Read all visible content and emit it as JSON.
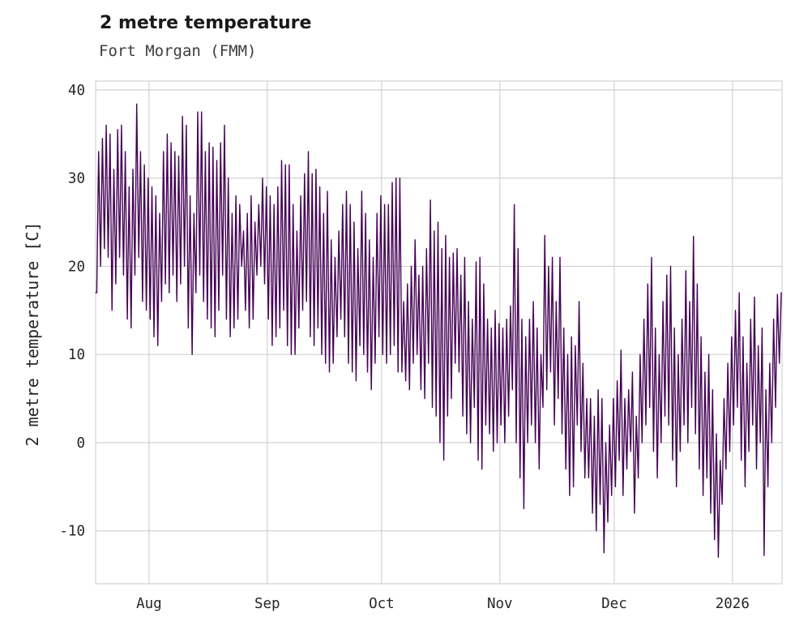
{
  "header": {
    "title": "2 metre temperature",
    "subtitle": "Fort Morgan (FMM)"
  },
  "chart_data": {
    "type": "line",
    "title": "2 metre temperature",
    "subtitle": "Fort Morgan (FMM)",
    "xlabel": "",
    "ylabel": "2 metre temperature [C]",
    "ylim": [
      -16,
      41
    ],
    "grid": true,
    "legend": false,
    "line_color": "#440154",
    "grid_color": "#d2d2d2",
    "x_ticks": [
      {
        "label": "Aug",
        "day": 14
      },
      {
        "label": "Sep",
        "day": 45
      },
      {
        "label": "Oct",
        "day": 75
      },
      {
        "label": "Nov",
        "day": 106
      },
      {
        "label": "Dec",
        "day": 136
      },
      {
        "label": "2026",
        "day": 167
      }
    ],
    "y_ticks": [
      -10,
      0,
      10,
      20,
      30,
      40
    ],
    "days_before_first_tick": 14,
    "series": [
      {
        "name": "2 metre temperature (hourly trace, daily high/low envelope read from plot)",
        "daily_high": [
          33,
          34.5,
          36,
          35,
          31,
          35.5,
          36,
          33,
          29,
          31,
          38.4,
          33,
          31.5,
          30,
          29,
          28,
          26,
          33,
          35,
          34,
          33,
          32.5,
          37,
          36,
          28,
          26,
          37.5,
          37.5,
          33,
          34,
          33.5,
          32,
          34,
          36,
          30,
          26,
          28,
          27,
          24,
          26,
          28,
          25,
          27,
          30,
          29,
          28,
          27,
          29,
          32,
          31.5,
          31.5,
          27,
          24,
          28,
          30.5,
          33,
          30.5,
          31,
          29,
          26,
          28.5,
          23,
          21,
          24,
          27,
          28.5,
          27,
          25,
          22,
          28.5,
          26,
          23,
          21,
          26,
          28,
          27,
          27,
          29.5,
          30,
          30,
          16,
          18,
          20,
          23,
          19,
          20,
          22,
          27.5,
          24,
          25,
          22,
          23.5,
          21,
          21.5,
          22,
          19,
          21,
          16,
          14,
          20.5,
          21,
          18,
          14,
          13,
          15,
          13.5,
          13,
          14,
          15.5,
          27,
          22,
          14,
          12,
          14,
          16,
          13,
          10,
          23.5,
          20,
          21,
          16,
          21,
          13,
          10,
          12,
          11,
          16,
          9,
          5,
          5,
          3,
          6,
          5,
          0,
          2,
          5,
          7,
          10.5,
          5,
          6,
          8,
          3,
          10,
          14,
          18,
          21,
          13,
          10,
          16,
          19,
          20,
          13,
          10,
          14,
          19.5,
          16,
          23.4,
          18,
          12,
          8,
          10,
          6,
          1,
          -2,
          5,
          9,
          12,
          15,
          17,
          12,
          9,
          14,
          16.5,
          11,
          13,
          6,
          9,
          14,
          16.8,
          17
        ],
        "daily_low": [
          17,
          20,
          22,
          21,
          15,
          18,
          21,
          19,
          14,
          13,
          19,
          21,
          16,
          15,
          14,
          12,
          11,
          16,
          18,
          17,
          19,
          16,
          18,
          20,
          13,
          10,
          17,
          19,
          16,
          14,
          13,
          12,
          15,
          19,
          14,
          12,
          13,
          14,
          20,
          15,
          13,
          14,
          19,
          20,
          18,
          14,
          11,
          12,
          13,
          15,
          11,
          10,
          10,
          13,
          15,
          16,
          12,
          11,
          13,
          10,
          9,
          8,
          9,
          12,
          14,
          12,
          9,
          8,
          7,
          11,
          10,
          8,
          6,
          9,
          12,
          10,
          9,
          10,
          11,
          8,
          8,
          7,
          6,
          9,
          10,
          6,
          5,
          9,
          4,
          3,
          0,
          -2,
          3,
          5,
          9,
          8,
          3,
          1,
          0,
          4,
          -2,
          -3,
          2,
          1,
          -1,
          0,
          2,
          0,
          3,
          6,
          0,
          -4,
          -7.5,
          0,
          2,
          0,
          -3,
          4,
          6,
          8,
          2,
          5,
          1,
          -3,
          -6,
          -5,
          2,
          -1,
          -4,
          -4,
          -8,
          -10,
          -7,
          -12.5,
          -9,
          -6,
          -5,
          -2,
          -6,
          -3,
          -1,
          -8,
          -4,
          0,
          2,
          4,
          -1,
          -4,
          0,
          3,
          2,
          -2,
          -5,
          -1,
          2,
          0,
          4,
          1,
          -3,
          -6,
          -4,
          -8,
          -11,
          -13,
          -7,
          -3,
          -1,
          2,
          4,
          -2,
          -5,
          -1,
          2,
          -3,
          0,
          -12.8,
          -5,
          0,
          4,
          9
        ]
      }
    ]
  }
}
